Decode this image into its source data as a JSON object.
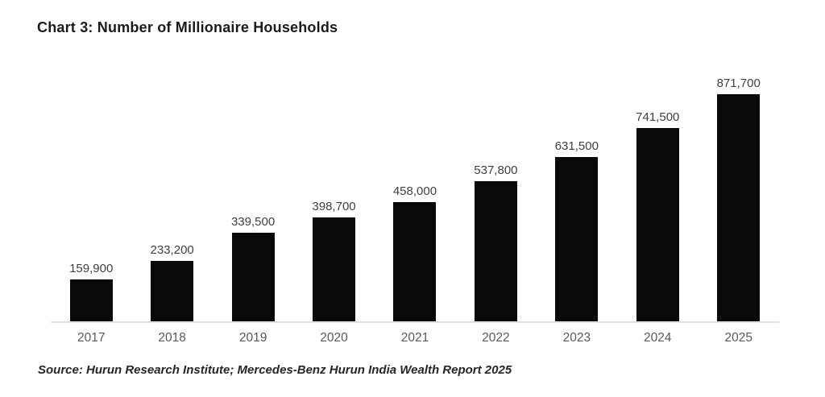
{
  "page": {
    "background": "#ffffff"
  },
  "chart_data": {
    "type": "bar",
    "title": "Chart 3: Number of Millionaire Households",
    "categories": [
      "2017",
      "2018",
      "2019",
      "2020",
      "2021",
      "2022",
      "2023",
      "2024",
      "2025"
    ],
    "values": [
      159900,
      233200,
      339500,
      398700,
      458000,
      537800,
      631500,
      741500,
      871700
    ],
    "value_labels": [
      "159,900",
      "233,200",
      "339,500",
      "398,700",
      "458,000",
      "537,800",
      "631,500",
      "741,500",
      "871,700"
    ],
    "xlabel": "",
    "ylabel": "",
    "ylim": [
      0,
      871700
    ],
    "grid": "off",
    "legend": "none",
    "bar_color": "#0a0a0a",
    "value_label_color": "#404040",
    "tick_label_color": "#595959",
    "axis_line_color": "#e0e0e0"
  },
  "source": "Source: Hurun Research Institute; Mercedes-Benz Hurun India Wealth Report 2025"
}
